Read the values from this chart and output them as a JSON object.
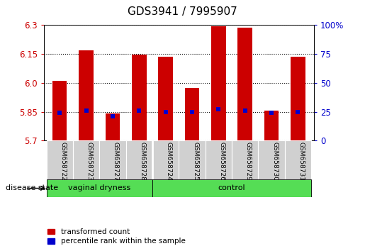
{
  "title": "GDS3941 / 7995907",
  "samples": [
    "GSM658722",
    "GSM658723",
    "GSM658727",
    "GSM658728",
    "GSM658724",
    "GSM658725",
    "GSM658726",
    "GSM658729",
    "GSM658730",
    "GSM658731"
  ],
  "group_labels": [
    "vaginal dryness",
    "control"
  ],
  "bar_values": [
    6.01,
    6.17,
    5.84,
    6.148,
    6.135,
    5.975,
    6.295,
    6.285,
    5.855,
    6.135
  ],
  "percentile_values": [
    24,
    26,
    21,
    26,
    25,
    25,
    27,
    26,
    24,
    25
  ],
  "ylim_left": [
    5.7,
    6.3
  ],
  "ylim_right": [
    0,
    100
  ],
  "yticks_left": [
    5.7,
    5.85,
    6.0,
    6.15,
    6.3
  ],
  "yticks_right": [
    0,
    25,
    50,
    75,
    100
  ],
  "bar_color": "#cc0000",
  "dot_color": "#0000cc",
  "bar_width": 0.55,
  "group_separator_idx": 4,
  "tick_fontsize": 8.5,
  "title_fontsize": 11,
  "label_color_left": "#cc0000",
  "label_color_right": "#0000cc",
  "gray_box_color": "#d0d0d0",
  "green_color": "#55dd55"
}
